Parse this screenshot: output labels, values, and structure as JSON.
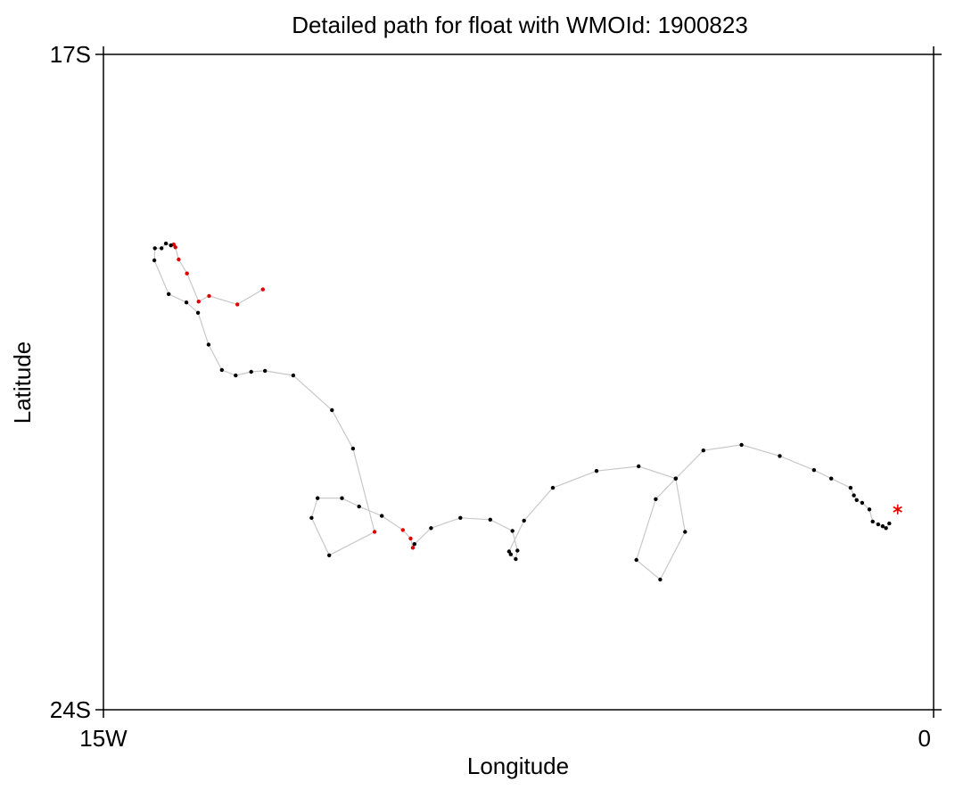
{
  "chart_data": {
    "type": "scatter",
    "title": "Detailed path for float with WMOId: 1900823",
    "xlabel": "Longitude",
    "ylabel": "Latitude",
    "xlim": [
      -15,
      0
    ],
    "ylim": [
      -24,
      -17
    ],
    "x_tick_labels": [
      {
        "value": -15,
        "label": "15W"
      },
      {
        "value": 0,
        "label": "0"
      }
    ],
    "y_tick_labels": [
      {
        "value": -17,
        "label": "17S"
      },
      {
        "value": -24,
        "label": "24S"
      }
    ],
    "grid": false,
    "colors": {
      "path": "#c8c8c8",
      "point_normal": "#000000",
      "point_flagged": "#e00000",
      "last_position_marker": "#e00000"
    },
    "path": [
      {
        "lon": -12.12,
        "lat": -19.51,
        "flag": true
      },
      {
        "lon": -12.58,
        "lat": -19.67,
        "flag": true
      },
      {
        "lon": -13.09,
        "lat": -19.58,
        "flag": true
      },
      {
        "lon": -13.28,
        "lat": -19.64,
        "flag": true
      },
      {
        "lon": -13.49,
        "lat": -19.34,
        "flag": true
      },
      {
        "lon": -13.64,
        "lat": -19.19,
        "flag": true
      },
      {
        "lon": -13.7,
        "lat": -19.06,
        "flag": true
      },
      {
        "lon": -13.73,
        "lat": -19.03,
        "flag": true
      },
      {
        "lon": -13.78,
        "lat": -19.04,
        "flag": false
      },
      {
        "lon": -13.87,
        "lat": -19.02,
        "flag": false
      },
      {
        "lon": -13.95,
        "lat": -19.07,
        "flag": false
      },
      {
        "lon": -14.07,
        "lat": -19.07,
        "flag": false
      },
      {
        "lon": -14.08,
        "lat": -19.2,
        "flag": false
      },
      {
        "lon": -13.82,
        "lat": -19.56,
        "flag": false
      },
      {
        "lon": -13.5,
        "lat": -19.65,
        "flag": false
      },
      {
        "lon": -13.29,
        "lat": -19.76,
        "flag": false
      },
      {
        "lon": -13.1,
        "lat": -20.1,
        "flag": false
      },
      {
        "lon": -12.86,
        "lat": -20.37,
        "flag": false
      },
      {
        "lon": -12.61,
        "lat": -20.43,
        "flag": false
      },
      {
        "lon": -12.33,
        "lat": -20.39,
        "flag": false
      },
      {
        "lon": -12.08,
        "lat": -20.38,
        "flag": false
      },
      {
        "lon": -11.57,
        "lat": -20.43,
        "flag": false
      },
      {
        "lon": -10.87,
        "lat": -20.8,
        "flag": false
      },
      {
        "lon": -10.49,
        "lat": -21.21,
        "flag": false
      },
      {
        "lon": -10.1,
        "lat": -22.1,
        "flag": true
      },
      {
        "lon": -10.92,
        "lat": -22.35,
        "flag": false
      },
      {
        "lon": -11.24,
        "lat": -21.95,
        "flag": false
      },
      {
        "lon": -11.13,
        "lat": -21.74,
        "flag": false
      },
      {
        "lon": -10.69,
        "lat": -21.74,
        "flag": false
      },
      {
        "lon": -10.38,
        "lat": -21.83,
        "flag": false
      },
      {
        "lon": -9.97,
        "lat": -21.93,
        "flag": false
      },
      {
        "lon": -9.59,
        "lat": -22.08,
        "flag": true
      },
      {
        "lon": -9.45,
        "lat": -22.17,
        "flag": true
      },
      {
        "lon": -9.41,
        "lat": -22.27,
        "flag": true
      },
      {
        "lon": -9.38,
        "lat": -22.23,
        "flag": false
      },
      {
        "lon": -9.08,
        "lat": -22.06,
        "flag": false
      },
      {
        "lon": -8.55,
        "lat": -21.95,
        "flag": false
      },
      {
        "lon": -8.01,
        "lat": -21.97,
        "flag": false
      },
      {
        "lon": -7.61,
        "lat": -22.09,
        "flag": false
      },
      {
        "lon": -7.52,
        "lat": -22.3,
        "flag": false
      },
      {
        "lon": -7.55,
        "lat": -22.39,
        "flag": false
      },
      {
        "lon": -7.64,
        "lat": -22.34,
        "flag": false
      },
      {
        "lon": -7.67,
        "lat": -22.31,
        "flag": false
      },
      {
        "lon": -7.4,
        "lat": -21.98,
        "flag": false
      },
      {
        "lon": -6.88,
        "lat": -21.63,
        "flag": false
      },
      {
        "lon": -6.09,
        "lat": -21.45,
        "flag": false
      },
      {
        "lon": -5.33,
        "lat": -21.4,
        "flag": false
      },
      {
        "lon": -4.66,
        "lat": -21.53,
        "flag": false
      },
      {
        "lon": -5.02,
        "lat": -21.75,
        "flag": false
      },
      {
        "lon": -5.37,
        "lat": -22.4,
        "flag": false
      },
      {
        "lon": -4.94,
        "lat": -22.61,
        "flag": false
      },
      {
        "lon": -4.49,
        "lat": -22.1,
        "flag": false
      },
      {
        "lon": -4.66,
        "lat": -21.53,
        "flag": false
      },
      {
        "lon": -4.16,
        "lat": -21.23,
        "flag": false
      },
      {
        "lon": -3.47,
        "lat": -21.17,
        "flag": false
      },
      {
        "lon": -2.78,
        "lat": -21.29,
        "flag": false
      },
      {
        "lon": -2.16,
        "lat": -21.44,
        "flag": false
      },
      {
        "lon": -1.85,
        "lat": -21.53,
        "flag": false
      },
      {
        "lon": -1.5,
        "lat": -21.63,
        "flag": false
      },
      {
        "lon": -1.44,
        "lat": -21.71,
        "flag": false
      },
      {
        "lon": -1.39,
        "lat": -21.76,
        "flag": false
      },
      {
        "lon": -1.29,
        "lat": -21.79,
        "flag": false
      },
      {
        "lon": -1.16,
        "lat": -21.86,
        "flag": false
      },
      {
        "lon": -1.1,
        "lat": -21.99,
        "flag": false
      },
      {
        "lon": -1.0,
        "lat": -22.02,
        "flag": false
      },
      {
        "lon": -0.92,
        "lat": -22.04,
        "flag": false
      },
      {
        "lon": -0.86,
        "lat": -22.06,
        "flag": false
      },
      {
        "lon": -0.8,
        "lat": -22.01,
        "flag": false
      }
    ],
    "last_position": {
      "lon": -0.65,
      "lat": -21.86
    }
  }
}
